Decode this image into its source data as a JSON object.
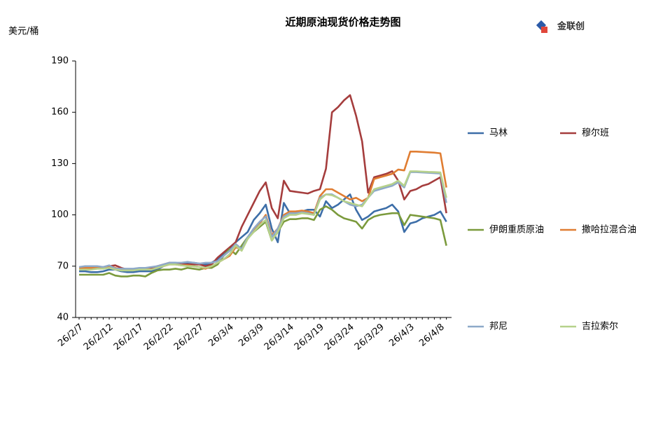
{
  "chart_data": {
    "type": "line",
    "title": "近期原油现货价格走势图",
    "y_label": "美元/桶",
    "logo": "金联创",
    "categories": [
      "26/2/7",
      null,
      null,
      null,
      null,
      "26/2/12",
      null,
      null,
      null,
      null,
      "26/2/17",
      null,
      null,
      null,
      null,
      "26/2/22",
      null,
      null,
      null,
      null,
      "26/2/27",
      null,
      null,
      null,
      null,
      "26/3/4",
      null,
      null,
      null,
      null,
      "26/3/9",
      null,
      null,
      null,
      null,
      "26/3/14",
      null,
      null,
      null,
      null,
      "26/3/19",
      null,
      null,
      null,
      null,
      "26/3/24",
      null,
      null,
      null,
      null,
      "26/3/29",
      null,
      null,
      null,
      null,
      "26/4/3",
      null,
      null,
      null,
      null,
      "26/4/8",
      null
    ],
    "ylim": [
      40,
      190
    ],
    "yticks": [
      40,
      70,
      100,
      130,
      160,
      190
    ],
    "series": [
      {
        "name": "马林",
        "color": "#3d6ea8",
        "values": [
          67,
          67,
          66.5,
          66.5,
          67,
          68,
          68,
          67,
          66.5,
          66.5,
          67,
          67,
          67,
          68,
          70,
          72,
          72,
          71.5,
          72,
          72,
          71.5,
          71,
          72,
          74,
          77,
          80,
          84,
          87,
          90,
          97,
          101,
          106,
          92,
          84,
          107,
          101,
          102,
          102,
          103,
          103,
          99,
          108,
          104,
          106,
          109,
          112,
          103,
          97,
          99,
          102,
          103,
          104,
          106,
          102,
          90,
          95,
          96,
          98,
          99,
          100,
          102,
          96
        ]
      },
      {
        "name": "穆尔班",
        "color": "#a53d3d",
        "values": [
          68,
          68,
          68.5,
          69,
          69,
          70,
          70.5,
          69,
          68,
          68,
          68,
          68.5,
          69,
          70,
          71,
          72,
          71.5,
          71,
          71,
          71,
          71,
          70,
          71,
          75,
          78,
          81,
          84,
          93,
          100,
          107,
          114,
          119,
          104,
          98,
          120,
          114,
          113.5,
          113,
          112.5,
          114,
          115,
          127,
          160,
          163,
          167,
          170,
          158,
          143,
          113,
          122,
          123,
          124,
          125.5,
          120,
          109,
          114,
          115,
          117,
          118,
          120,
          122,
          101
        ]
      },
      {
        "name": "伊朗重质原油",
        "color": "#7b9a3c",
        "values": [
          65,
          65,
          65,
          65,
          65,
          66,
          64.5,
          64,
          64,
          64.5,
          64.5,
          64,
          66,
          67.5,
          68,
          68,
          68.5,
          68,
          69,
          68.5,
          68,
          69,
          69,
          71,
          76,
          80,
          77,
          82,
          87,
          90,
          93,
          96,
          85,
          90,
          96,
          97.5,
          97.5,
          98,
          98,
          97,
          103,
          105,
          103,
          100,
          98,
          97,
          96,
          92,
          97,
          99,
          100,
          100.5,
          101,
          101,
          94,
          100,
          99.5,
          99,
          98.5,
          98,
          97,
          82
        ]
      },
      {
        "name": "撒哈拉混合油",
        "color": "#e07d32",
        "values": [
          69,
          69,
          69,
          69.5,
          69.5,
          70,
          69,
          68,
          68,
          68,
          68.5,
          68.5,
          68,
          69,
          70,
          71,
          71,
          70.5,
          70.5,
          70,
          69.5,
          68.5,
          70,
          72,
          74,
          76,
          81,
          80,
          86,
          91,
          95,
          100,
          88,
          92,
          100,
          102,
          102,
          102.5,
          102,
          101,
          111,
          115,
          115,
          113,
          111,
          109,
          110,
          108,
          110,
          121,
          122,
          123,
          124,
          126.5,
          126,
          137,
          137,
          136.8,
          136.6,
          136.4,
          136,
          116
        ]
      },
      {
        "name": "邦尼",
        "color": "#8ea9c9",
        "values": [
          69.5,
          70,
          70,
          70,
          69.5,
          70.5,
          68.5,
          68.5,
          68.5,
          68.5,
          69,
          69,
          69.5,
          70,
          71,
          72,
          72,
          72,
          72.5,
          72,
          71.5,
          72,
          72,
          73,
          76,
          79,
          83,
          80,
          87,
          92,
          96,
          99,
          87,
          92,
          99,
          101,
          101,
          101.5,
          101,
          100,
          110,
          112,
          112,
          110,
          108,
          106,
          105,
          106,
          110,
          114,
          115,
          116,
          117,
          119,
          116,
          125,
          125,
          124.8,
          124.6,
          124.4,
          124.2,
          107
        ]
      },
      {
        "name": "吉拉索尔",
        "color": "#b6d18b",
        "values": [
          68,
          68,
          68,
          68.5,
          68.5,
          69,
          68,
          67.5,
          67.5,
          67.5,
          68,
          68,
          68,
          69,
          70,
          71,
          71,
          70.5,
          70,
          70,
          69.5,
          69,
          70,
          72,
          74,
          77,
          82,
          79,
          86,
          90,
          94,
          97,
          85,
          90,
          98,
          100,
          100,
          101,
          100.5,
          100,
          109,
          112,
          111.5,
          110,
          108,
          107,
          106,
          105,
          110,
          115,
          116,
          117,
          118,
          120,
          117,
          125.5,
          125.5,
          125.3,
          125.1,
          125,
          124.8,
          110
        ]
      }
    ]
  }
}
